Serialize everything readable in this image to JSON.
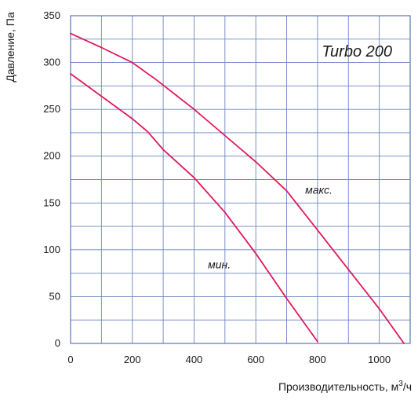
{
  "chart_data": {
    "type": "line",
    "title": "Turbo 200",
    "xlabel": "Производительность, м",
    "xlabel_sup": "3",
    "xlabel_suffix": "/ч",
    "ylabel": "Давление, Па",
    "xlim": [
      0,
      1100
    ],
    "ylim": [
      0,
      350
    ],
    "grid": true,
    "x_ticks": [
      0,
      200,
      400,
      600,
      800,
      1000
    ],
    "y_ticks": [
      0,
      50,
      100,
      150,
      200,
      250,
      300,
      350
    ],
    "x_grid_step": 100,
    "y_grid_step": 25,
    "series": [
      {
        "name": "макс.",
        "color": "#e0185b",
        "points": [
          [
            0,
            331
          ],
          [
            100,
            316
          ],
          [
            200,
            300
          ],
          [
            280,
            281
          ],
          [
            400,
            250
          ],
          [
            500,
            222
          ],
          [
            600,
            194
          ],
          [
            700,
            163
          ],
          [
            800,
            121
          ],
          [
            900,
            79
          ],
          [
            1000,
            37
          ],
          [
            1080,
            0
          ]
        ]
      },
      {
        "name": "мин.",
        "color": "#e0185b",
        "points": [
          [
            0,
            288
          ],
          [
            100,
            264
          ],
          [
            200,
            240
          ],
          [
            250,
            226
          ],
          [
            300,
            207
          ],
          [
            400,
            177
          ],
          [
            500,
            140
          ],
          [
            600,
            96
          ],
          [
            700,
            48
          ],
          [
            800,
            2
          ]
        ]
      }
    ],
    "annotations": [
      {
        "text": "макс.",
        "x": 760,
        "y": 160
      },
      {
        "text": "мин.",
        "x": 445,
        "y": 80
      }
    ]
  },
  "colors": {
    "curve": "#e0185b",
    "grid": "#6b86c2",
    "frame": "#5a74b8",
    "text": "#1a1a1a"
  }
}
